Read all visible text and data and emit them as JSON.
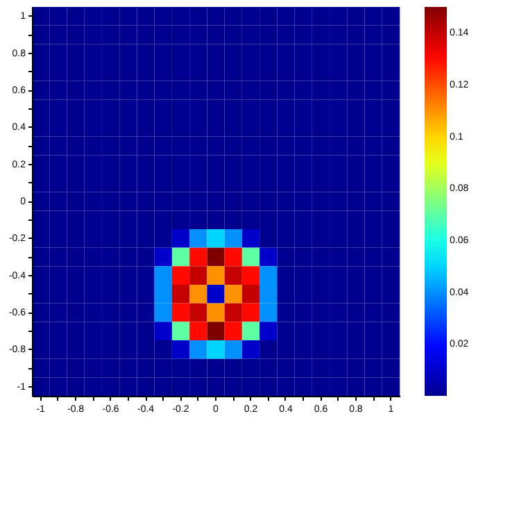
{
  "chart_data": {
    "type": "heatmap",
    "categories": [
      "-1",
      null,
      "-0.8",
      null,
      "-0.6",
      null,
      "-0.4",
      null,
      "-0.2",
      null,
      "0",
      null,
      "0.2",
      null,
      "0.4",
      null,
      "0.6",
      null,
      "0.8",
      null,
      "1"
    ],
    "y_categories": [
      "1",
      null,
      "0.8",
      null,
      "0.6",
      null,
      "0.4",
      null,
      "0.2",
      null,
      "0",
      null,
      "-0.2",
      null,
      "-0.4",
      null,
      "-0.6",
      null,
      "-0.8",
      null,
      "-1"
    ],
    "cells": [
      [
        0,
        0,
        0,
        0,
        0,
        0,
        0,
        0,
        0,
        0,
        0,
        0,
        0,
        0,
        0,
        0,
        0,
        0,
        0,
        0,
        0
      ],
      [
        0,
        0,
        0,
        0,
        0,
        0,
        0,
        0,
        0,
        0,
        0,
        0,
        0,
        0,
        0,
        0,
        0,
        0,
        0,
        0,
        0
      ],
      [
        0,
        0,
        0,
        0,
        0,
        0,
        0,
        0,
        0,
        0,
        0,
        0,
        0,
        0,
        0,
        0,
        0,
        0,
        0,
        0,
        0
      ],
      [
        0,
        0,
        0,
        0,
        0,
        0,
        0,
        0,
        0,
        0,
        0,
        0,
        0,
        0,
        0,
        0,
        0,
        0,
        0,
        0,
        0
      ],
      [
        0,
        0,
        0,
        0,
        0,
        0,
        0,
        0,
        0,
        0,
        0,
        0,
        0,
        0,
        0,
        0,
        0,
        0,
        0,
        0,
        0
      ],
      [
        0,
        0,
        0,
        0,
        0,
        0,
        0,
        0,
        0,
        0,
        0,
        0,
        0,
        0,
        0,
        0,
        0,
        0,
        0,
        0,
        0
      ],
      [
        0,
        0,
        0,
        0,
        0,
        0,
        0,
        0,
        0,
        0,
        0,
        0,
        0,
        0,
        0,
        0,
        0,
        0,
        0,
        0,
        0
      ],
      [
        0,
        0,
        0,
        0,
        0,
        0,
        0,
        0,
        0,
        0,
        0,
        0,
        0,
        0,
        0,
        0,
        0,
        0,
        0,
        0,
        0
      ],
      [
        0,
        0,
        0,
        0,
        0,
        0,
        0,
        0,
        0,
        0,
        0,
        0,
        0,
        0,
        0,
        0,
        0,
        0,
        0,
        0,
        0
      ],
      [
        0,
        0,
        0,
        0,
        0,
        0,
        0,
        0,
        0,
        0,
        0,
        0,
        0,
        0,
        0,
        0,
        0,
        0,
        0,
        0,
        0
      ],
      [
        0,
        0,
        0,
        0,
        0,
        0,
        0,
        0,
        0,
        0,
        0,
        0,
        0,
        0,
        0,
        0,
        0,
        0,
        0,
        0,
        0
      ],
      [
        0,
        0,
        0,
        0,
        0,
        0,
        0,
        0,
        0,
        0,
        0,
        0,
        0,
        0,
        0,
        0,
        0,
        0,
        0,
        0,
        0
      ],
      [
        0,
        0,
        0,
        0,
        0,
        0,
        0,
        0,
        0.01,
        0.04,
        0.05,
        0.04,
        0.01,
        0,
        0,
        0,
        0,
        0,
        0,
        0,
        0
      ],
      [
        0,
        0,
        0,
        0,
        0,
        0,
        0,
        0.01,
        0.07,
        0.13,
        0.15,
        0.13,
        0.07,
        0.01,
        0,
        0,
        0,
        0,
        0,
        0,
        0
      ],
      [
        0,
        0,
        0,
        0,
        0,
        0,
        0,
        0.04,
        0.13,
        0.14,
        0.11,
        0.14,
        0.13,
        0.04,
        0,
        0,
        0,
        0,
        0,
        0,
        0
      ],
      [
        0,
        0,
        0,
        0,
        0,
        0,
        0,
        0.04,
        0.14,
        0.11,
        0.01,
        0.11,
        0.14,
        0.04,
        0,
        0,
        0,
        0,
        0,
        0,
        0
      ],
      [
        0,
        0,
        0,
        0,
        0,
        0,
        0,
        0.04,
        0.13,
        0.14,
        0.11,
        0.14,
        0.13,
        0.04,
        0,
        0,
        0,
        0,
        0,
        0,
        0
      ],
      [
        0,
        0,
        0,
        0,
        0,
        0,
        0,
        0.01,
        0.07,
        0.13,
        0.15,
        0.13,
        0.07,
        0.01,
        0,
        0,
        0,
        0,
        0,
        0,
        0
      ],
      [
        0,
        0,
        0,
        0,
        0,
        0,
        0,
        0,
        0.01,
        0.04,
        0.05,
        0.04,
        0.01,
        0,
        0,
        0,
        0,
        0,
        0,
        0,
        0
      ],
      [
        0,
        0,
        0,
        0,
        0,
        0,
        0,
        0,
        0,
        0,
        0,
        0,
        0,
        0,
        0,
        0,
        0,
        0,
        0,
        0,
        0
      ],
      [
        0,
        0,
        0,
        0,
        0,
        0,
        0,
        0,
        0,
        0,
        0,
        0,
        0,
        0,
        0,
        0,
        0,
        0,
        0,
        0,
        0
      ]
    ],
    "clim": [
      0,
      0.15
    ],
    "cticks": [
      0.02,
      0.04,
      0.06,
      0.08,
      0.1,
      0.12,
      0.14
    ]
  }
}
